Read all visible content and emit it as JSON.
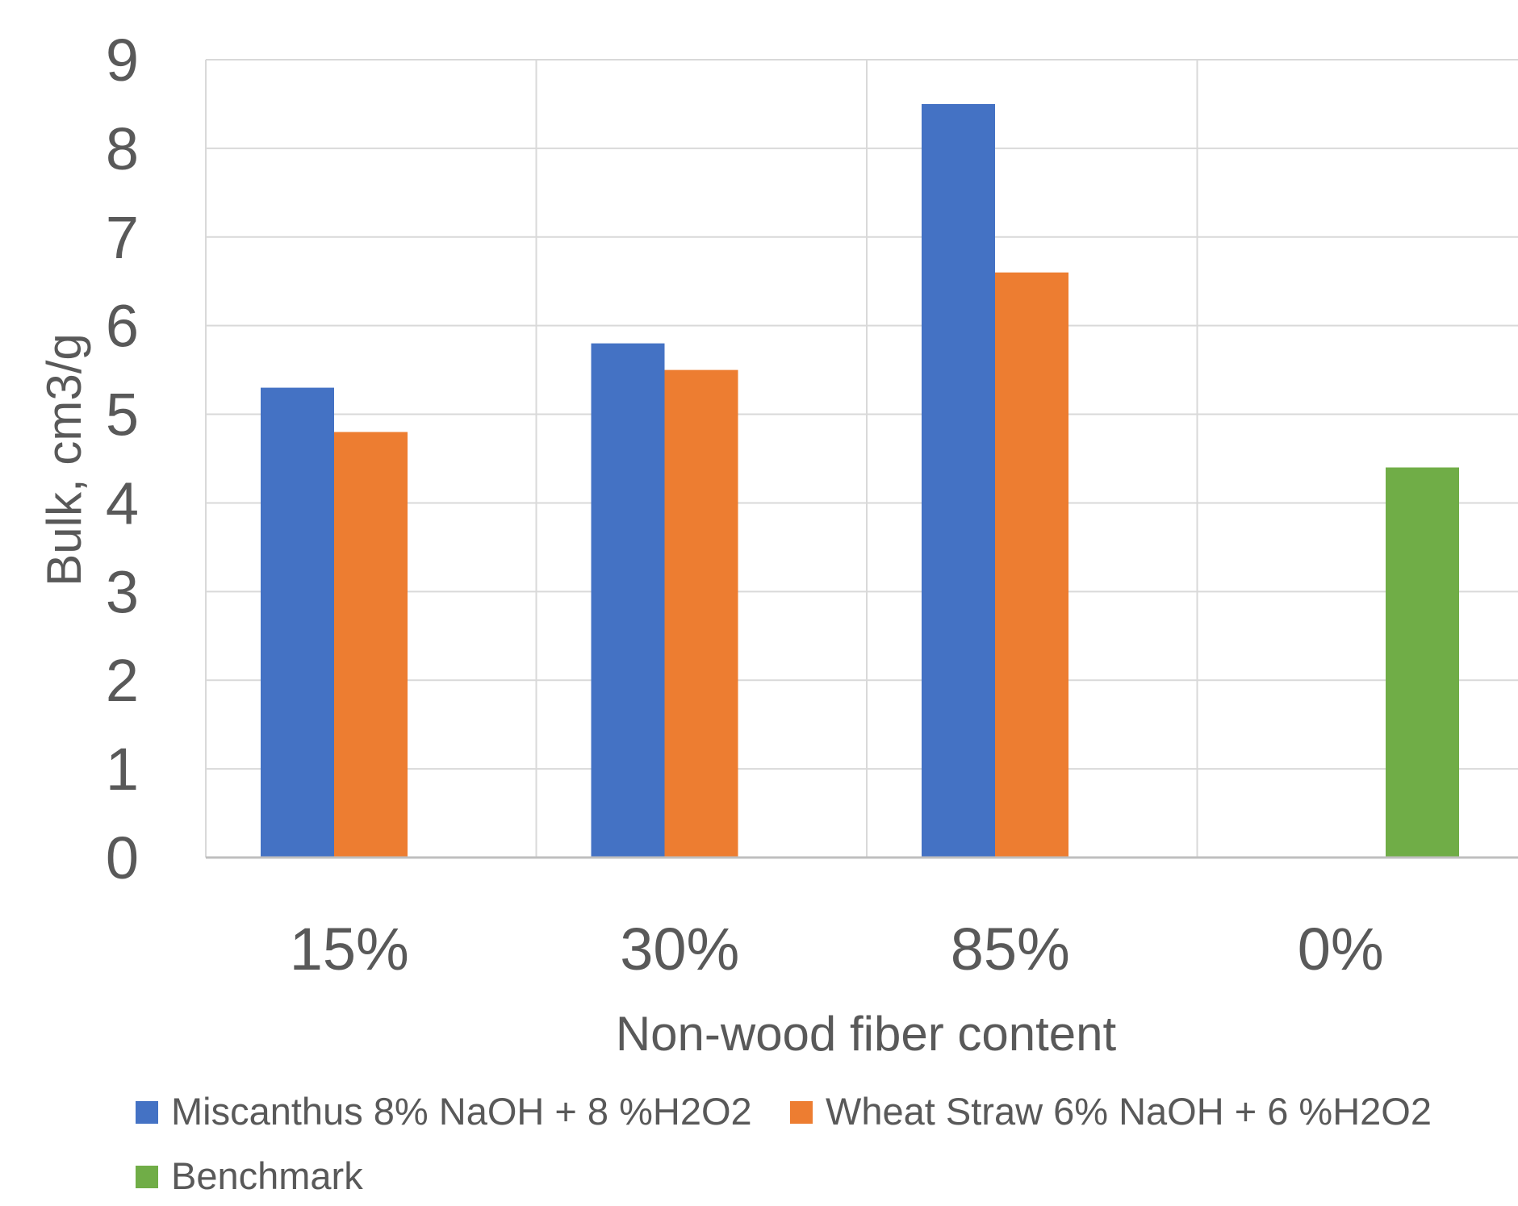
{
  "chart_data": {
    "type": "bar",
    "title": "",
    "xlabel": "Non-wood fiber content",
    "ylabel": "Bulk, cm3/g",
    "categories": [
      "15%",
      "30%",
      "85%",
      "0%"
    ],
    "ylim": [
      0,
      9
    ],
    "yticks": [
      0,
      1,
      2,
      3,
      4,
      5,
      6,
      7,
      8,
      9
    ],
    "grid": true,
    "legend_position": "bottom",
    "series": [
      {
        "name": "Miscanthus 8% NaOH + 8 %H2O2",
        "color": "#4472C4",
        "values": [
          5.3,
          5.8,
          8.5,
          null
        ]
      },
      {
        "name": "Wheat Straw 6% NaOH + 6 %H2O2",
        "color": "#ED7D31",
        "values": [
          4.8,
          5.5,
          6.6,
          null
        ]
      },
      {
        "name": "Benchmark",
        "color": "#70AD47",
        "values": [
          null,
          null,
          null,
          4.4
        ]
      }
    ],
    "colors": {
      "grid": "#D9D9D9",
      "axis": "#BFBFBF",
      "text": "#595959"
    }
  }
}
